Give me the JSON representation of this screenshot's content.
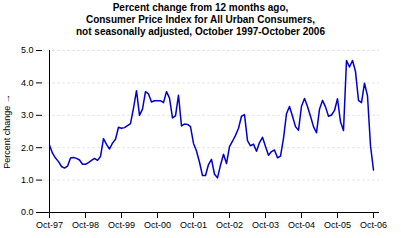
{
  "chart_data": {
    "type": "line",
    "title": "Percent change from 12 months ago,\nConsumer Price Index for All Urban Consumers,\nnot seasonally adjusted, October 1997-October 2006",
    "ylabel": "Percent change",
    "color": "#0000CC",
    "ylim": [
      0,
      5
    ],
    "yticks": [
      0,
      1,
      2,
      3,
      4,
      5
    ],
    "grid": true,
    "categories": [
      "Oct-97",
      null,
      null,
      null,
      null,
      null,
      null,
      null,
      null,
      null,
      null,
      null,
      "Oct-98",
      null,
      null,
      null,
      null,
      null,
      null,
      null,
      null,
      null,
      null,
      null,
      "Oct-99",
      null,
      null,
      null,
      null,
      null,
      null,
      null,
      null,
      null,
      null,
      null,
      "Oct-00",
      null,
      null,
      null,
      null,
      null,
      null,
      null,
      null,
      null,
      null,
      null,
      "Oct-01",
      null,
      null,
      null,
      null,
      null,
      null,
      null,
      null,
      null,
      null,
      null,
      "Oct-02",
      null,
      null,
      null,
      null,
      null,
      null,
      null,
      null,
      null,
      null,
      null,
      "Oct-03",
      null,
      null,
      null,
      null,
      null,
      null,
      null,
      null,
      null,
      null,
      null,
      "Oct-04",
      null,
      null,
      null,
      null,
      null,
      null,
      null,
      null,
      null,
      null,
      null,
      "Oct-05",
      null,
      null,
      null,
      null,
      null,
      null,
      null,
      null,
      null,
      null,
      null,
      "Oct-06"
    ],
    "values": [
      2.08,
      1.83,
      1.68,
      1.57,
      1.42,
      1.37,
      1.43,
      1.68,
      1.7,
      1.67,
      1.62,
      1.49,
      1.49,
      1.54,
      1.61,
      1.67,
      1.61,
      1.73,
      2.28,
      2.1,
      1.96,
      2.14,
      2.26,
      2.63,
      2.6,
      2.62,
      2.68,
      2.74,
      3.22,
      3.76,
      3.0,
      3.19,
      3.73,
      3.66,
      3.41,
      3.45,
      3.45,
      3.45,
      3.39,
      3.73,
      3.53,
      2.92,
      2.98,
      3.62,
      2.67,
      2.73,
      2.72,
      2.65,
      2.13,
      1.9,
      1.55,
      1.14,
      1.14,
      1.48,
      1.64,
      1.18,
      1.07,
      1.46,
      1.8,
      1.51,
      2.03,
      2.2,
      2.38,
      2.6,
      2.97,
      3.02,
      2.22,
      2.06,
      2.11,
      1.89,
      2.16,
      2.32,
      2.04,
      1.77,
      1.88,
      1.93,
      1.69,
      1.74,
      2.29,
      3.05,
      3.27,
      2.97,
      2.65,
      2.54,
      3.28,
      3.52,
      3.27,
      2.97,
      2.65,
      2.46,
      3.19,
      3.46,
      3.26,
      2.97,
      3.01,
      3.15,
      3.51,
      2.8,
      2.53,
      4.69,
      4.49,
      4.69,
      4.35,
      3.46,
      3.39,
      3.99,
      3.6,
      2.06,
      1.31
    ]
  }
}
